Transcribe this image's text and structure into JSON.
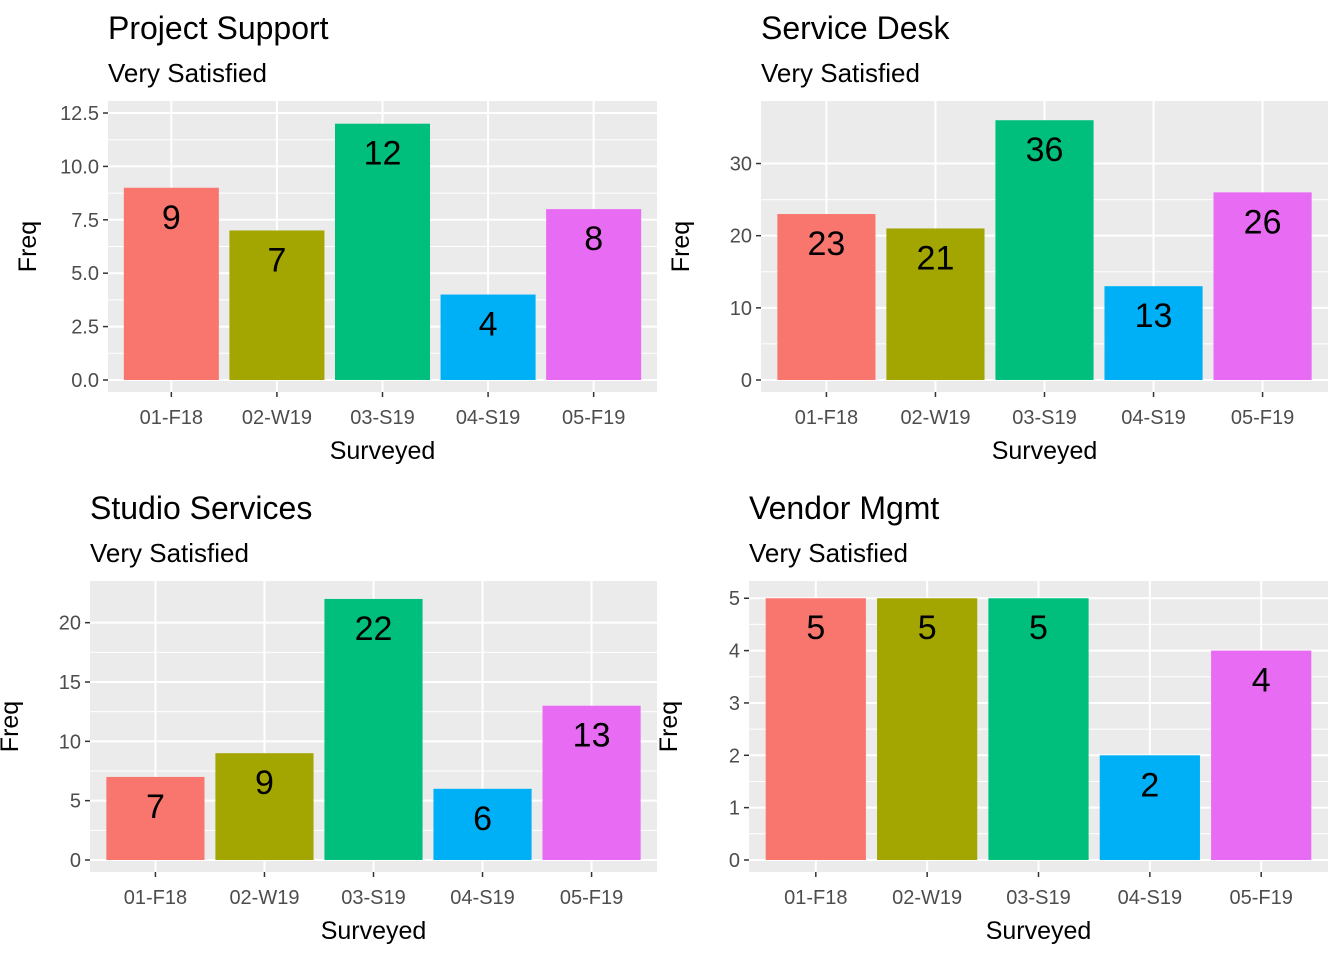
{
  "chart_data": [
    {
      "type": "bar",
      "title": "Project Support",
      "subtitle": "Very Satisfied",
      "xlabel": "Surveyed",
      "ylabel": "Freq",
      "categories": [
        "01-F18",
        "02-W19",
        "03-S19",
        "04-S19",
        "05-F19"
      ],
      "values": [
        9,
        7,
        12,
        4,
        8
      ],
      "ylim": [
        0,
        12.5
      ],
      "yticks": [
        0,
        2.5,
        5,
        7.5,
        10,
        12.5
      ],
      "ytick_labels": [
        "0.0",
        "2.5",
        "5.0",
        "7.5",
        "10.0",
        "12.5"
      ],
      "colors": [
        "#F8766D",
        "#A3A500",
        "#00BF7D",
        "#00B0F6",
        "#E76BF3"
      ],
      "grid": true
    },
    {
      "type": "bar",
      "title": "Service Desk",
      "subtitle": "Very Satisfied",
      "xlabel": "Surveyed",
      "ylabel": "Freq",
      "categories": [
        "01-F18",
        "02-W19",
        "03-S19",
        "04-S19",
        "05-F19"
      ],
      "values": [
        23,
        21,
        36,
        13,
        26
      ],
      "ylim": [
        0,
        37
      ],
      "yticks": [
        0,
        10,
        20,
        30
      ],
      "ytick_labels": [
        "0",
        "10",
        "20",
        "30"
      ],
      "colors": [
        "#F8766D",
        "#A3A500",
        "#00BF7D",
        "#00B0F6",
        "#E76BF3"
      ],
      "grid": true
    },
    {
      "type": "bar",
      "title": "Studio Services",
      "subtitle": "Very Satisfied",
      "xlabel": "Surveyed",
      "ylabel": "Freq",
      "categories": [
        "01-F18",
        "02-W19",
        "03-S19",
        "04-S19",
        "05-F19"
      ],
      "values": [
        7,
        9,
        22,
        6,
        13
      ],
      "ylim": [
        0,
        22.5
      ],
      "yticks": [
        0,
        5,
        10,
        15,
        20
      ],
      "ytick_labels": [
        "0",
        "5",
        "10",
        "15",
        "20"
      ],
      "colors": [
        "#F8766D",
        "#A3A500",
        "#00BF7D",
        "#00B0F6",
        "#E76BF3"
      ],
      "grid": true
    },
    {
      "type": "bar",
      "title": "Vendor Mgmt",
      "subtitle": "Very Satisfied",
      "xlabel": "Surveyed",
      "ylabel": "Freq",
      "categories": [
        "01-F18",
        "02-W19",
        "03-S19",
        "04-S19",
        "05-F19"
      ],
      "values": [
        5,
        5,
        5,
        2,
        4
      ],
      "ylim": [
        0,
        5.1
      ],
      "yticks": [
        0,
        1,
        2,
        3,
        4,
        5
      ],
      "ytick_labels": [
        "0",
        "1",
        "2",
        "3",
        "4",
        "5"
      ],
      "colors": [
        "#F8766D",
        "#A3A500",
        "#00BF7D",
        "#00B0F6",
        "#E76BF3"
      ],
      "grid": true
    }
  ]
}
